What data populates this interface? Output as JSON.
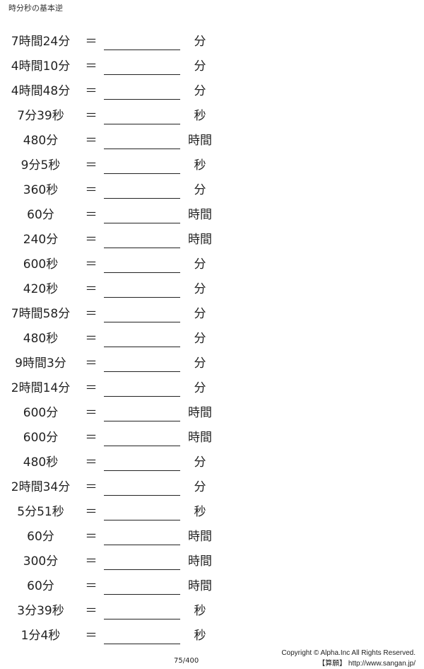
{
  "title": "時分秒の基本逆",
  "equals": "＝",
  "rows": [
    {
      "q": "7時間24分",
      "unit": "分"
    },
    {
      "q": "4時間10分",
      "unit": "分"
    },
    {
      "q": "4時間48分",
      "unit": "分"
    },
    {
      "q": "7分39秒",
      "unit": "秒"
    },
    {
      "q": "480分",
      "unit": "時間"
    },
    {
      "q": "9分5秒",
      "unit": "秒"
    },
    {
      "q": "360秒",
      "unit": "分"
    },
    {
      "q": "60分",
      "unit": "時間"
    },
    {
      "q": "240分",
      "unit": "時間"
    },
    {
      "q": "600秒",
      "unit": "分"
    },
    {
      "q": "420秒",
      "unit": "分"
    },
    {
      "q": "7時間58分",
      "unit": "分"
    },
    {
      "q": "480秒",
      "unit": "分"
    },
    {
      "q": "9時間3分",
      "unit": "分"
    },
    {
      "q": "2時間14分",
      "unit": "分"
    },
    {
      "q": "600分",
      "unit": "時間"
    },
    {
      "q": "600分",
      "unit": "時間"
    },
    {
      "q": "480秒",
      "unit": "分"
    },
    {
      "q": "2時間34分",
      "unit": "分"
    },
    {
      "q": "5分51秒",
      "unit": "秒"
    },
    {
      "q": "60分",
      "unit": "時間"
    },
    {
      "q": "300分",
      "unit": "時間"
    },
    {
      "q": "60分",
      "unit": "時間"
    },
    {
      "q": "3分39秒",
      "unit": "秒"
    },
    {
      "q": "1分4秒",
      "unit": "秒"
    }
  ],
  "footer": {
    "page": "75/400",
    "copyright": "Copyright © Alpha.Inc All Rights Reserved.",
    "site": "【算願】 http://www.sangan.jp/"
  }
}
